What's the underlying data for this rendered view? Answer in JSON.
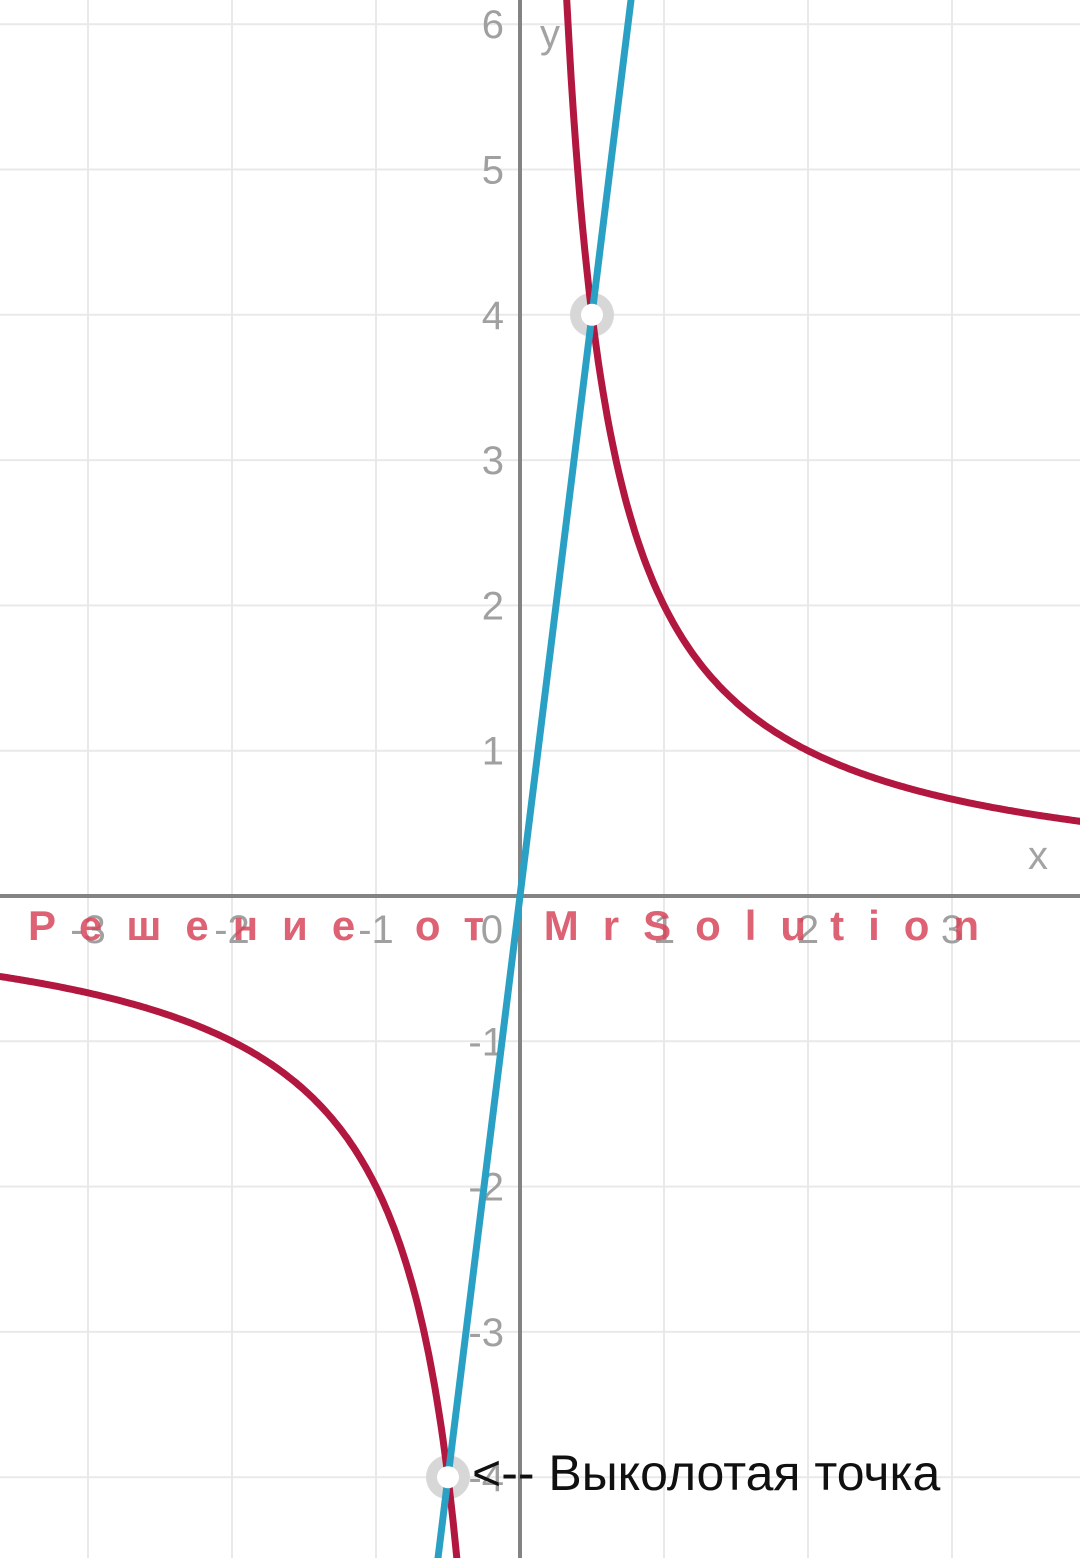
{
  "page": {
    "background": "#ffffff"
  },
  "watermark": {
    "text": "Решение от MrSolution",
    "color": "#d6475c"
  },
  "annotation": {
    "text": "<-- Выколотая точка",
    "color": "#101010"
  },
  "chart_data": {
    "type": "line",
    "title": "",
    "xlabel": "x",
    "ylabel": "y",
    "grid": true,
    "legend": "none",
    "xlim": [
      -3.6,
      3.9
    ],
    "ylim": [
      -4.6,
      6.2
    ],
    "x_ticks": [
      -3,
      -2,
      -1,
      0,
      1,
      2,
      3
    ],
    "y_ticks": [
      -4,
      -3,
      -2,
      -1,
      1,
      2,
      3,
      4,
      5,
      6
    ],
    "series": [
      {
        "name": "y = 2/x",
        "kind": "hyperbola",
        "k": 2,
        "color": "#b2173f"
      },
      {
        "name": "y = 8x",
        "kind": "linear",
        "slope": 8,
        "intercept": 0,
        "color": "#2aa1c4"
      }
    ],
    "points": [
      {
        "x": 0.5,
        "y": 4,
        "style": "open-dot",
        "label": ""
      },
      {
        "x": -0.5,
        "y": -4,
        "style": "open-dot",
        "label": "Выколотая точка"
      }
    ]
  },
  "colors": {
    "grid": "#e9e9e9",
    "axis": "#838383",
    "tick_label": "#a0a0a0",
    "axis_letter": "#a3a3a3",
    "marker_ring": "#d7d7d7",
    "marker_center": "#ffffff"
  }
}
